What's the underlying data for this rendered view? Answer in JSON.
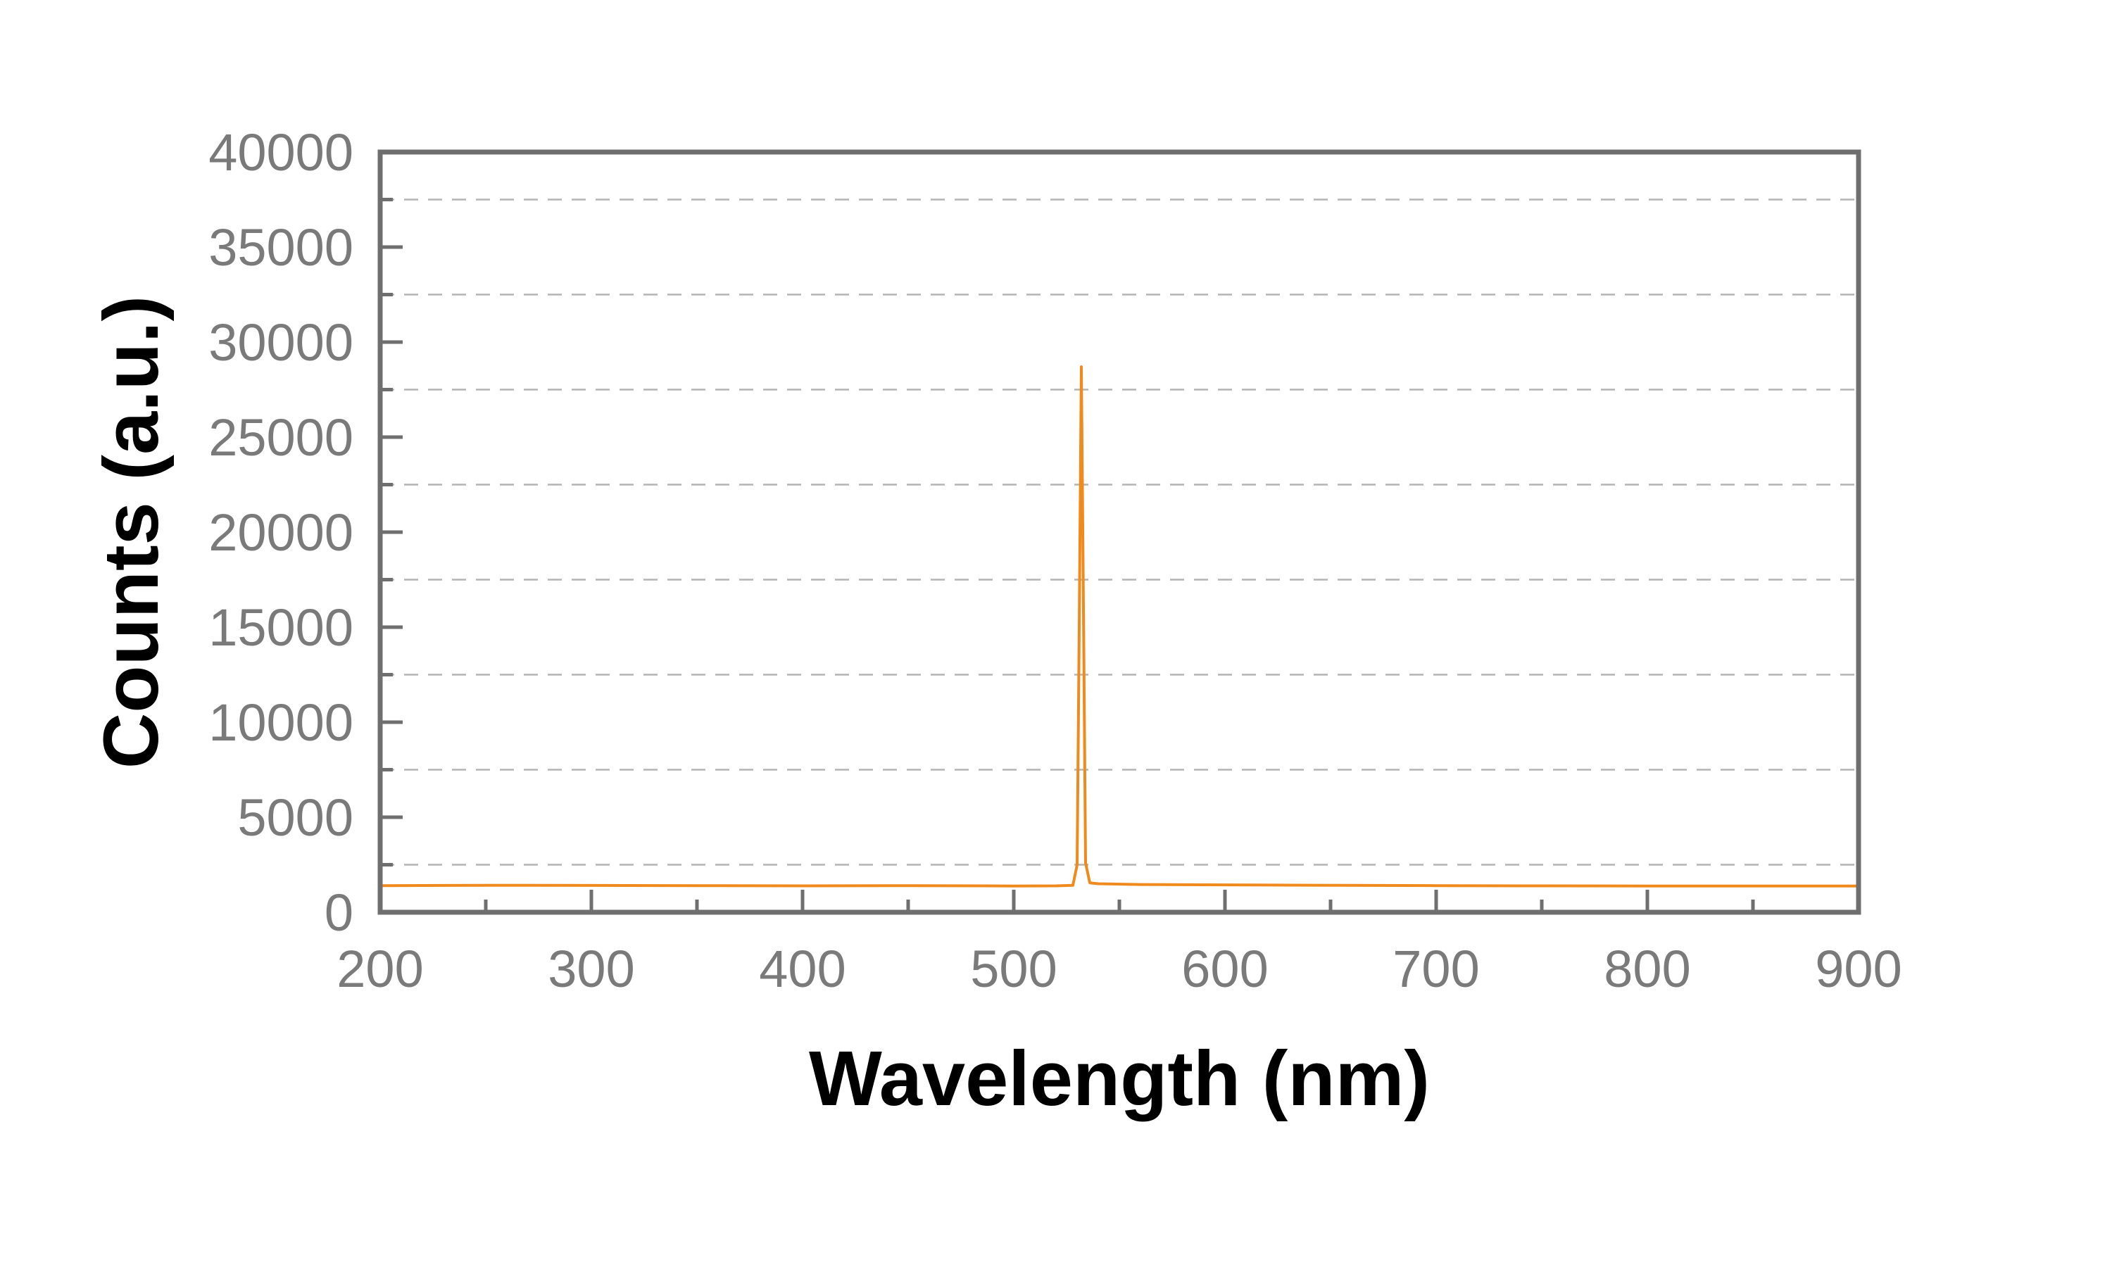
{
  "chart_data": {
    "type": "line",
    "title": "",
    "xlabel": "Wavelength (nm)",
    "ylabel": "Counts (a.u.)",
    "xlim": [
      200,
      900
    ],
    "ylim": [
      0,
      40000
    ],
    "x_ticks": [
      200,
      300,
      400,
      500,
      600,
      700,
      800,
      900
    ],
    "x_tick_labels": [
      "200",
      "300",
      "400",
      "500",
      "600",
      "700",
      "800",
      "900"
    ],
    "x_minor_ticks": [
      250,
      350,
      450,
      550,
      650,
      750,
      850
    ],
    "y_ticks": [
      0,
      5000,
      10000,
      15000,
      20000,
      25000,
      30000,
      35000,
      40000
    ],
    "y_tick_labels": [
      "0",
      "5000",
      "10000",
      "15000",
      "20000",
      "25000",
      "30000",
      "35000",
      "40000"
    ],
    "y_minor_ticks": [
      2500,
      7500,
      12500,
      17500,
      22500,
      27500,
      32500,
      37500
    ],
    "grid": true,
    "grid_values": [
      2500,
      7500,
      12500,
      17500,
      22500,
      27500,
      32500,
      37500
    ],
    "colors": {
      "series": "#f08a1c",
      "axis": "#6f6f6f",
      "tick_label": "#7a7a7a",
      "grid": "#b4b4b4"
    },
    "series": [
      {
        "x": [
          200,
          250,
          300,
          350,
          400,
          450,
          500,
          520,
          528,
          530,
          531,
          532,
          533,
          534,
          536,
          540,
          560,
          600,
          650,
          700,
          750,
          800,
          850,
          900
        ],
        "y": [
          1400,
          1420,
          1410,
          1400,
          1390,
          1400,
          1380,
          1390,
          1420,
          2500,
          15000,
          28700,
          16000,
          2600,
          1550,
          1500,
          1460,
          1440,
          1420,
          1400,
          1390,
          1380,
          1380,
          1380
        ]
      }
    ]
  }
}
